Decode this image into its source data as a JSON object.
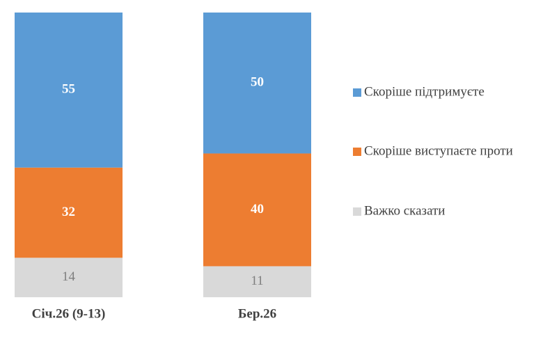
{
  "chart_data": {
    "type": "stacked_bar",
    "categories": [
      "Січ.26 (9-13)",
      "Бер.26"
    ],
    "series": [
      {
        "name": "Важко сказати",
        "color": "#d9d9d9",
        "values": [
          14,
          11
        ]
      },
      {
        "name": "Скоріше виступаєте проти",
        "color": "#ed7d31",
        "values": [
          32,
          40
        ]
      },
      {
        "name": "Скоріше підтримуєте",
        "color": "#5b9bd5",
        "values": [
          55,
          50
        ]
      }
    ],
    "legend": "right"
  }
}
